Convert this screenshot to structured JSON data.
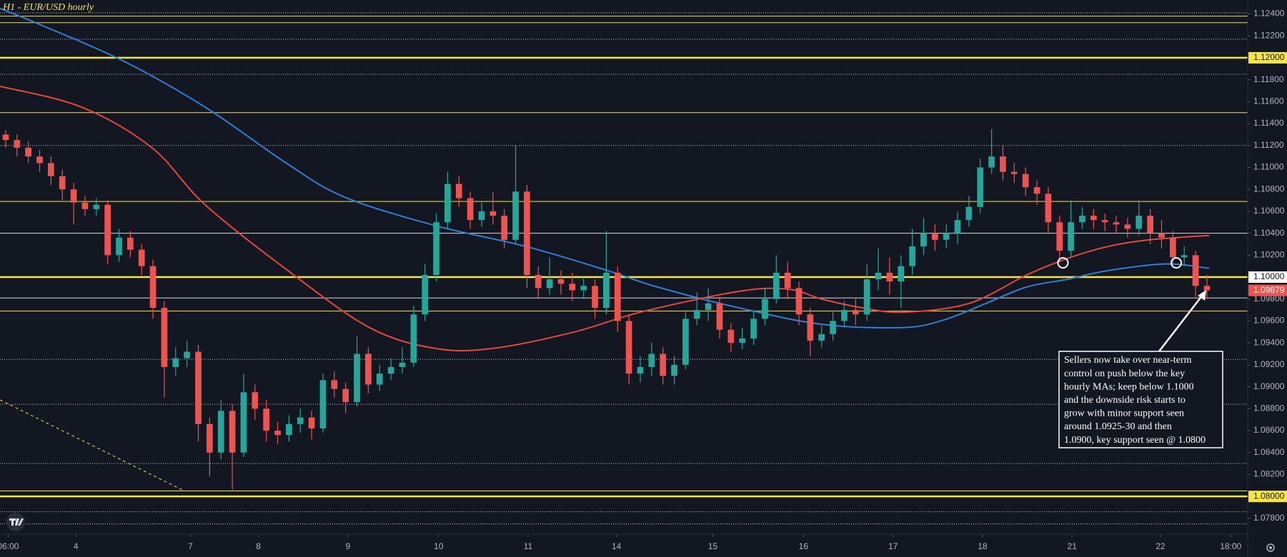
{
  "chart_data": {
    "type": "candlestick",
    "title": "H1 - EUR/USD hourly",
    "up_color": "#26a69a",
    "down_color": "#ef5350",
    "xlim": [
      0,
      110.1
    ],
    "xticks": [
      {
        "value": 0.72,
        "label": "06:00"
      },
      {
        "value": 6.7,
        "label": "4"
      },
      {
        "value": 16.8,
        "label": "7"
      },
      {
        "value": 22.8,
        "label": "8"
      },
      {
        "value": 30.7,
        "label": "9"
      },
      {
        "value": 38.7,
        "label": "10"
      },
      {
        "value": 46.6,
        "label": "11"
      },
      {
        "value": 54.4,
        "label": "14"
      },
      {
        "value": 62.9,
        "label": "15"
      },
      {
        "value": 70.9,
        "label": "16"
      },
      {
        "value": 78.8,
        "label": "17"
      },
      {
        "value": 86.7,
        "label": "18"
      },
      {
        "value": 94.6,
        "label": "21"
      },
      {
        "value": 102.4,
        "label": "22"
      },
      {
        "value": 108.6,
        "label": "18:00"
      }
    ],
    "ylim": [
      1.07656,
      1.12527
    ],
    "yticks": [
      {
        "value": 1.124,
        "label": "1.12400"
      },
      {
        "value": 1.122,
        "label": "1.12200"
      },
      {
        "value": 1.12,
        "label": "1.12000"
      },
      {
        "value": 1.118,
        "label": "1.11800"
      },
      {
        "value": 1.116,
        "label": "1.11600"
      },
      {
        "value": 1.114,
        "label": "1.11400"
      },
      {
        "value": 1.112,
        "label": "1.11200"
      },
      {
        "value": 1.11,
        "label": "1.11000"
      },
      {
        "value": 1.108,
        "label": "1.10800"
      },
      {
        "value": 1.106,
        "label": "1.10600"
      },
      {
        "value": 1.104,
        "label": "1.10400"
      },
      {
        "value": 1.102,
        "label": "1.10200"
      },
      {
        "value": 1.1,
        "label": "1.10000"
      },
      {
        "value": 1.098,
        "label": "1.09800"
      },
      {
        "value": 1.096,
        "label": "1.09600"
      },
      {
        "value": 1.094,
        "label": "1.09400"
      },
      {
        "value": 1.092,
        "label": "1.09200"
      },
      {
        "value": 1.09,
        "label": "1.09000"
      },
      {
        "value": 1.088,
        "label": "1.08800"
      },
      {
        "value": 1.086,
        "label": "1.08600"
      },
      {
        "value": 1.084,
        "label": "1.08400"
      },
      {
        "value": 1.082,
        "label": "1.08200"
      },
      {
        "value": 1.08,
        "label": "1.08000"
      },
      {
        "value": 1.078,
        "label": "1.07800"
      }
    ],
    "open": [
      1.113,
      1.1125,
      1.1118,
      1.111,
      1.1104,
      1.1092,
      1.108,
      1.1068,
      1.1062,
      1.1066,
      1.102,
      1.1036,
      1.1025,
      1.101,
      1.0972,
      1.0918,
      1.0926,
      1.0932,
      1.0866,
      1.084,
      1.0878,
      1.084,
      1.0895,
      1.088,
      1.086,
      1.0856,
      1.0866,
      1.0872,
      1.0862,
      1.0906,
      1.0898,
      1.0886,
      1.093,
      1.0902,
      1.0912,
      1.0918,
      1.0922,
      1.0966,
      1.1002,
      1.105,
      1.1085,
      1.1072,
      1.1052,
      1.106,
      1.1056,
      1.1034,
      1.1078,
      1.1002,
      1.099,
      1.0998,
      1.0994,
      1.0988,
      1.0992,
      1.0972,
      1.1004,
      1.096,
      1.0912,
      1.0918,
      1.093,
      1.091,
      1.092,
      1.0962,
      1.097,
      1.0976,
      1.0952,
      1.094,
      1.0944,
      1.0962,
      1.098,
      1.1004,
      1.099,
      1.0966,
      1.0942,
      1.0948,
      1.096,
      1.097,
      1.0966,
      1.0998,
      1.1004,
      1.0996,
      1.101,
      1.1028,
      1.104,
      1.1034,
      1.104,
      1.1052,
      1.1064,
      1.11,
      1.111,
      1.1096,
      1.1094,
      1.1082,
      1.1076,
      1.105,
      1.1024,
      1.105,
      1.1056,
      1.1052,
      1.105,
      1.1048,
      1.1044,
      1.1056,
      1.104,
      1.1036,
      1.1018,
      1.102,
      1.0992
    ],
    "high": [
      1.1134,
      1.113,
      1.1124,
      1.1116,
      1.111,
      1.1098,
      1.1086,
      1.1074,
      1.1072,
      1.107,
      1.1044,
      1.1042,
      1.103,
      1.1016,
      1.0978,
      1.0936,
      1.0942,
      1.0938,
      1.0872,
      1.0888,
      1.0884,
      1.0912,
      1.0902,
      1.0888,
      1.0868,
      1.0874,
      1.088,
      1.0878,
      1.0912,
      1.0914,
      1.0904,
      1.0946,
      1.0936,
      1.092,
      1.0926,
      1.0936,
      1.0974,
      1.1012,
      1.1058,
      1.1096,
      1.1092,
      1.1078,
      1.1068,
      1.1078,
      1.1062,
      1.112,
      1.1084,
      1.101,
      1.1018,
      1.1006,
      1.1004,
      1.1,
      1.0998,
      1.1042,
      1.101,
      1.0966,
      1.0928,
      1.094,
      1.0936,
      1.0928,
      1.097,
      1.0986,
      1.099,
      1.0982,
      1.0958,
      1.0954,
      1.097,
      1.099,
      1.102,
      1.1014,
      1.0996,
      1.0972,
      1.0956,
      1.0968,
      1.0978,
      1.098,
      1.1012,
      1.1026,
      1.1018,
      1.102,
      1.1044,
      1.1054,
      1.1048,
      1.1048,
      1.106,
      1.1074,
      1.1108,
      1.1135,
      1.112,
      1.1104,
      1.11,
      1.1088,
      1.1082,
      1.1056,
      1.107,
      1.1064,
      1.1062,
      1.1058,
      1.1056,
      1.1054,
      1.107,
      1.1062,
      1.1052,
      1.1042,
      1.1028,
      1.1024,
      1.1002
    ],
    "low": [
      1.1118,
      1.111,
      1.1104,
      1.1096,
      1.1084,
      1.107,
      1.1048,
      1.1056,
      1.1056,
      1.1012,
      1.1014,
      1.1018,
      1.1002,
      1.0962,
      1.089,
      1.091,
      1.0918,
      1.085,
      1.0818,
      1.0834,
      1.0806,
      1.0836,
      1.087,
      1.085,
      1.0848,
      1.085,
      1.0858,
      1.0852,
      1.0858,
      1.089,
      1.0876,
      1.0882,
      1.0894,
      1.0896,
      1.0906,
      1.0912,
      1.0918,
      1.096,
      1.0996,
      1.1044,
      1.1064,
      1.1044,
      1.1046,
      1.1048,
      1.1026,
      1.103,
      1.099,
      1.098,
      1.0984,
      1.0984,
      1.0978,
      1.098,
      1.0962,
      1.0966,
      1.095,
      1.0902,
      1.0904,
      1.091,
      1.0902,
      1.0902,
      1.0916,
      1.0956,
      1.096,
      1.0944,
      1.0932,
      1.0934,
      1.0938,
      1.0956,
      1.0976,
      1.098,
      1.0956,
      1.0928,
      1.0936,
      1.0942,
      1.0954,
      1.0956,
      1.096,
      1.0988,
      1.0984,
      1.0972,
      1.1002,
      1.102,
      1.1024,
      1.1026,
      1.103,
      1.1046,
      1.1058,
      1.1094,
      1.1088,
      1.1086,
      1.1074,
      1.1066,
      1.104,
      1.1014,
      1.1018,
      1.1044,
      1.1044,
      1.1042,
      1.104,
      1.1036,
      1.1038,
      1.103,
      1.1026,
      1.1012,
      1.101,
      1.0982,
      1.098
    ],
    "close": [
      1.1125,
      1.1118,
      1.111,
      1.1104,
      1.1092,
      1.108,
      1.1068,
      1.1062,
      1.1066,
      1.102,
      1.1036,
      1.1025,
      1.101,
      1.0972,
      1.0918,
      1.0926,
      1.0932,
      1.0866,
      1.084,
      1.0878,
      1.084,
      1.0895,
      1.088,
      1.086,
      1.0856,
      1.0866,
      1.0872,
      1.0862,
      1.0906,
      1.0898,
      1.0886,
      1.093,
      1.0902,
      1.0912,
      1.0918,
      1.0922,
      1.0966,
      1.1002,
      1.105,
      1.1085,
      1.1072,
      1.1052,
      1.106,
      1.1056,
      1.1034,
      1.1078,
      1.1002,
      1.099,
      1.0998,
      1.0994,
      1.0988,
      1.0992,
      1.0972,
      1.1004,
      1.096,
      1.0912,
      1.0918,
      1.093,
      1.091,
      1.092,
      1.0962,
      1.097,
      1.0976,
      1.0952,
      1.094,
      1.0944,
      1.0962,
      1.098,
      1.1004,
      1.099,
      1.0966,
      1.0942,
      1.0948,
      1.096,
      1.097,
      1.0966,
      1.0998,
      1.1004,
      1.0996,
      1.101,
      1.1028,
      1.104,
      1.1034,
      1.104,
      1.1052,
      1.1064,
      1.11,
      1.111,
      1.1096,
      1.1094,
      1.1082,
      1.1076,
      1.105,
      1.1024,
      1.105,
      1.1056,
      1.1052,
      1.105,
      1.1048,
      1.1044,
      1.1056,
      1.104,
      1.1036,
      1.1018,
      1.102,
      1.0992,
      1.09879
    ],
    "last_label": "1.09879",
    "series": [
      {
        "color": "#2f7fd8",
        "x": [
          0,
          3.6,
          10.9,
          18.1,
          25.4,
          30.4,
          38.4,
          46.4,
          53.6,
          58,
          65.2,
          72.5,
          79.7,
          83.3,
          87,
          90.6,
          94.2,
          97.8,
          102.9,
          106.7
        ],
        "values": [
          1.1245,
          1.123,
          1.1197,
          1.1155,
          1.1103,
          1.1073,
          1.1047,
          1.1028,
          1.1006,
          1.0991,
          1.0972,
          1.0957,
          1.0954,
          1.0961,
          1.0976,
          1.0991,
          1.0998,
          1.1006,
          1.1012,
          1.1008
        ]
      },
      {
        "color": "#e8473a",
        "x": [
          0,
          7.2,
          13.4,
          18.1,
          25.4,
          32.6,
          38.4,
          43.5,
          50.7,
          56.5,
          65.2,
          69.6,
          72.5,
          76.1,
          79.7,
          85.5,
          90.6,
          94.2,
          97.8,
          101.4,
          106.7
        ],
        "values": [
          1.1174,
          1.1155,
          1.1118,
          1.1066,
          1.1006,
          1.0954,
          1.0935,
          1.0935,
          1.095,
          1.0968,
          1.0987,
          1.0989,
          1.098,
          1.0972,
          1.0968,
          1.0976,
          1.1002,
          1.1017,
          1.1028,
          1.1034,
          1.1038
        ]
      }
    ],
    "levels": [
      {
        "value": 1.1238,
        "color": "#f5e642",
        "weight": "thin"
      },
      {
        "value": 1.1232,
        "color": "#f5e642",
        "weight": "thin"
      },
      {
        "value": 1.12,
        "color": "#f5e642",
        "weight": "thick",
        "label_bg": "#f5e642"
      },
      {
        "value": 1.115,
        "color": "#f5e642",
        "weight": "thin"
      },
      {
        "value": 1.1069,
        "color": "#f5e642",
        "weight": "thin"
      },
      {
        "value": 1.104,
        "color": "#d9d9d9",
        "weight": "thin"
      },
      {
        "value": 1.1,
        "color": "#f5e642",
        "weight": "thick",
        "label_bg": "#ffffff"
      },
      {
        "value": 1.0981,
        "color": "#d9d9d9",
        "weight": "thin"
      },
      {
        "value": 1.0969,
        "color": "#f5e642",
        "weight": "thin"
      },
      {
        "value": 1.0805,
        "color": "#f5e642",
        "weight": "thin"
      },
      {
        "value": 1.08,
        "color": "#f5e642",
        "weight": "thick",
        "label_bg": "#f5e642"
      }
    ],
    "dotted_levels": [
      1.1241,
      1.1217,
      1.1185,
      1.112,
      1.0925,
      1.0884,
      1.083,
      1.0786,
      1.0775
    ],
    "markers": [
      {
        "x": 93.8,
        "y": 1.1013
      },
      {
        "x": 103.8,
        "y": 1.1013
      }
    ],
    "annotation": [
      "Sellers now take over near-term",
      "control on push below the key",
      "hourly MAs; keep below 1.1000",
      "and the downside risk starts to",
      "grow with minor support seen",
      "around 1.0925-30 and then",
      "1.0900, key support seen @ 1.0800"
    ]
  }
}
